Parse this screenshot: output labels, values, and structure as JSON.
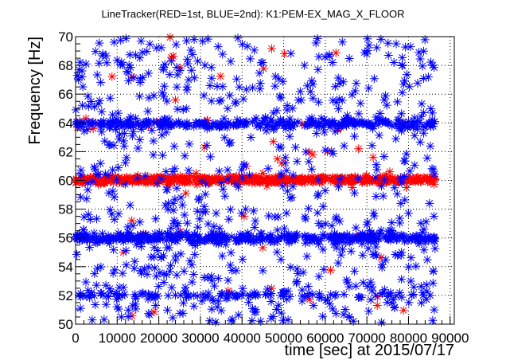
{
  "chart_data": {
    "type": "scatter",
    "title": "LineTracker(RED=1st, BLUE=2nd): K1:PEM-EX_MAG_X_FLOOR",
    "xlabel": "time [sec] at 2015/07/17",
    "ylabel": "Frequency [Hz]",
    "xlim": [
      0,
      91000
    ],
    "ylim": [
      50,
      70
    ],
    "x_ticks": [
      0,
      10000,
      20000,
      30000,
      40000,
      50000,
      60000,
      70000,
      80000,
      90000
    ],
    "x_tick_labels": [
      "0",
      "10000",
      "20000",
      "30000",
      "40000",
      "50000",
      "60000",
      "70000",
      "80000",
      "90000"
    ],
    "y_ticks": [
      50,
      52,
      54,
      56,
      58,
      60,
      62,
      64,
      66,
      68,
      70
    ],
    "y_tick_labels": [
      "50",
      "52",
      "54",
      "56",
      "58",
      "60",
      "62",
      "64",
      "66",
      "68",
      "70"
    ],
    "grid": true,
    "marker": "asterisk",
    "series": [
      {
        "color": "#ff0000",
        "x_range": [
          0,
          86400
        ],
        "bands": [
          {
            "center": 60.05,
            "spread": 0.22,
            "share": 0.92
          },
          {
            "center": 64.0,
            "spread": 0.3,
            "share": 0.02
          },
          {
            "center": 56.0,
            "spread": 0.3,
            "share": 0.01
          }
        ],
        "outliers": [
          [
            1000,
            64.1
          ],
          [
            2500,
            64.3
          ],
          [
            11500,
            55.0
          ],
          [
            13500,
            57.2
          ],
          [
            17500,
            63.8
          ],
          [
            24000,
            65.6
          ],
          [
            26500,
            59.1
          ],
          [
            29000,
            60.5
          ],
          [
            31000,
            62.3
          ],
          [
            40500,
            57.5
          ],
          [
            41000,
            61.0
          ],
          [
            46000,
            59.6
          ],
          [
            47500,
            62.7
          ],
          [
            48500,
            61.5
          ],
          [
            49500,
            61.2
          ],
          [
            57000,
            61.8
          ],
          [
            60500,
            62.0
          ],
          [
            63000,
            63.5
          ],
          [
            66500,
            59.5
          ],
          [
            68000,
            62.2
          ],
          [
            71500,
            61.6
          ],
          [
            72500,
            51.3
          ],
          [
            75500,
            60.6
          ],
          [
            79500,
            59.5
          ]
        ]
      },
      {
        "color": "#0000ff",
        "x_range": [
          0,
          86400
        ],
        "bands": [
          {
            "center": 63.95,
            "spread": 0.28,
            "share": 0.2
          },
          {
            "center": 56.0,
            "spread": 0.3,
            "share": 0.25
          },
          {
            "center": 52.0,
            "spread": 0.22,
            "share": 0.09
          }
        ],
        "scatter_range": [
          50.1,
          69.9
        ],
        "outliers": [
          [
            2500,
            68.1
          ],
          [
            4000,
            50.3
          ],
          [
            11000,
            50.5
          ],
          [
            23000,
            68.3
          ],
          [
            28500,
            69.8
          ],
          [
            39000,
            69.9
          ],
          [
            44500,
            50.2
          ],
          [
            55000,
            68.0
          ],
          [
            70500,
            69.4
          ],
          [
            76500,
            68.2
          ],
          [
            82500,
            68.9
          ],
          [
            47000,
            50.4
          ]
        ]
      }
    ]
  }
}
